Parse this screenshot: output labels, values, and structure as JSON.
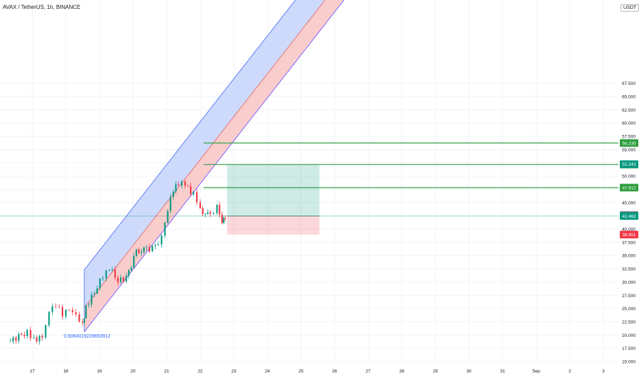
{
  "chart_data": {
    "type": "candlestick",
    "title": "AVAX / TetherUS, 1h, BINANCE",
    "currency_label": "USDT",
    "xlabel": "",
    "ylabel": "",
    "ylim": [
      15.0,
      68.6
    ],
    "y_ticks": [
      "15.000",
      "17.500",
      "20.000",
      "22.500",
      "25.000",
      "27.500",
      "30.000",
      "32.500",
      "35.000",
      "37.500",
      "40.000",
      "42.500",
      "45.000",
      "47.500",
      "50.000",
      "52.500",
      "55.000",
      "57.500",
      "60.000",
      "62.500",
      "65.000",
      "67.500"
    ],
    "x_ticks": [
      "17",
      "18",
      "19",
      "20",
      "21",
      "22",
      "23",
      "24",
      "25",
      "26",
      "27",
      "28",
      "29",
      "30",
      "31",
      "Sep",
      "2",
      "3"
    ],
    "grid": true,
    "price_series": [
      {
        "x": 16.35,
        "close": 18.8
      },
      {
        "x": 16.6,
        "close": 19.8
      },
      {
        "x": 16.85,
        "close": 20.4
      },
      {
        "x": 17.05,
        "close": 19.2
      },
      {
        "x": 17.3,
        "close": 19.6
      },
      {
        "x": 17.5,
        "close": 24.8
      },
      {
        "x": 17.7,
        "close": 25.9
      },
      {
        "x": 17.9,
        "close": 23.8
      },
      {
        "x": 18.1,
        "close": 24.6
      },
      {
        "x": 18.3,
        "close": 23.4
      },
      {
        "x": 18.5,
        "close": 21.8
      },
      {
        "x": 18.6,
        "close": 25.4
      },
      {
        "x": 18.85,
        "close": 28.0
      },
      {
        "x": 19.1,
        "close": 31.2
      },
      {
        "x": 19.3,
        "close": 32.8
      },
      {
        "x": 19.55,
        "close": 30.1
      },
      {
        "x": 19.8,
        "close": 30.9
      },
      {
        "x": 20.1,
        "close": 35.6
      },
      {
        "x": 20.4,
        "close": 36.1
      },
      {
        "x": 20.75,
        "close": 37.0
      },
      {
        "x": 20.95,
        "close": 41.5
      },
      {
        "x": 21.2,
        "close": 47.6
      },
      {
        "x": 21.35,
        "close": 48.6
      },
      {
        "x": 21.55,
        "close": 48.2
      },
      {
        "x": 21.8,
        "close": 46.6
      },
      {
        "x": 22.0,
        "close": 43.4
      },
      {
        "x": 22.3,
        "close": 42.5
      },
      {
        "x": 22.5,
        "close": 44.6
      },
      {
        "x": 22.65,
        "close": 41.6
      },
      {
        "x": 22.75,
        "close": 42.6
      }
    ],
    "levels": [
      {
        "price": 56.23,
        "label": "56.230",
        "color": "#2e9e3e"
      },
      {
        "price": 52.168,
        "label": "52.168",
        "color": "#2e9e3e"
      },
      {
        "price": 47.812,
        "label": "47.812",
        "color": "#2e9e3e"
      }
    ],
    "price_labels": [
      {
        "price": 52.242,
        "label": "52.242",
        "color": "#089981"
      },
      {
        "price": 42.643,
        "label": "42.643",
        "color": "#787b86"
      },
      {
        "price": 42.462,
        "label": "42.462",
        "color": "#089981"
      },
      {
        "price": 38.951,
        "label": "38.951",
        "color": "#f23645"
      }
    ],
    "position": {
      "x_start": 22.8,
      "x_end": 25.55,
      "entry": 42.462,
      "target": 52.168,
      "stop": 38.951
    },
    "channel": {
      "x_start": 18.55,
      "x_end": 26.8,
      "bottom_start": 20.6,
      "slope_per_day": 8.1,
      "mid_offset": 4.55,
      "top_offset": 11.7
    },
    "annotation": {
      "text": "0.9084019228653912",
      "x": 18.55,
      "y": 19.9
    }
  },
  "colors": {
    "up": "#089981",
    "down": "#f23645",
    "channel_upper": "#c6d3fb",
    "channel_lower": "#f9c4c4",
    "grid": "#f0f3fa"
  }
}
